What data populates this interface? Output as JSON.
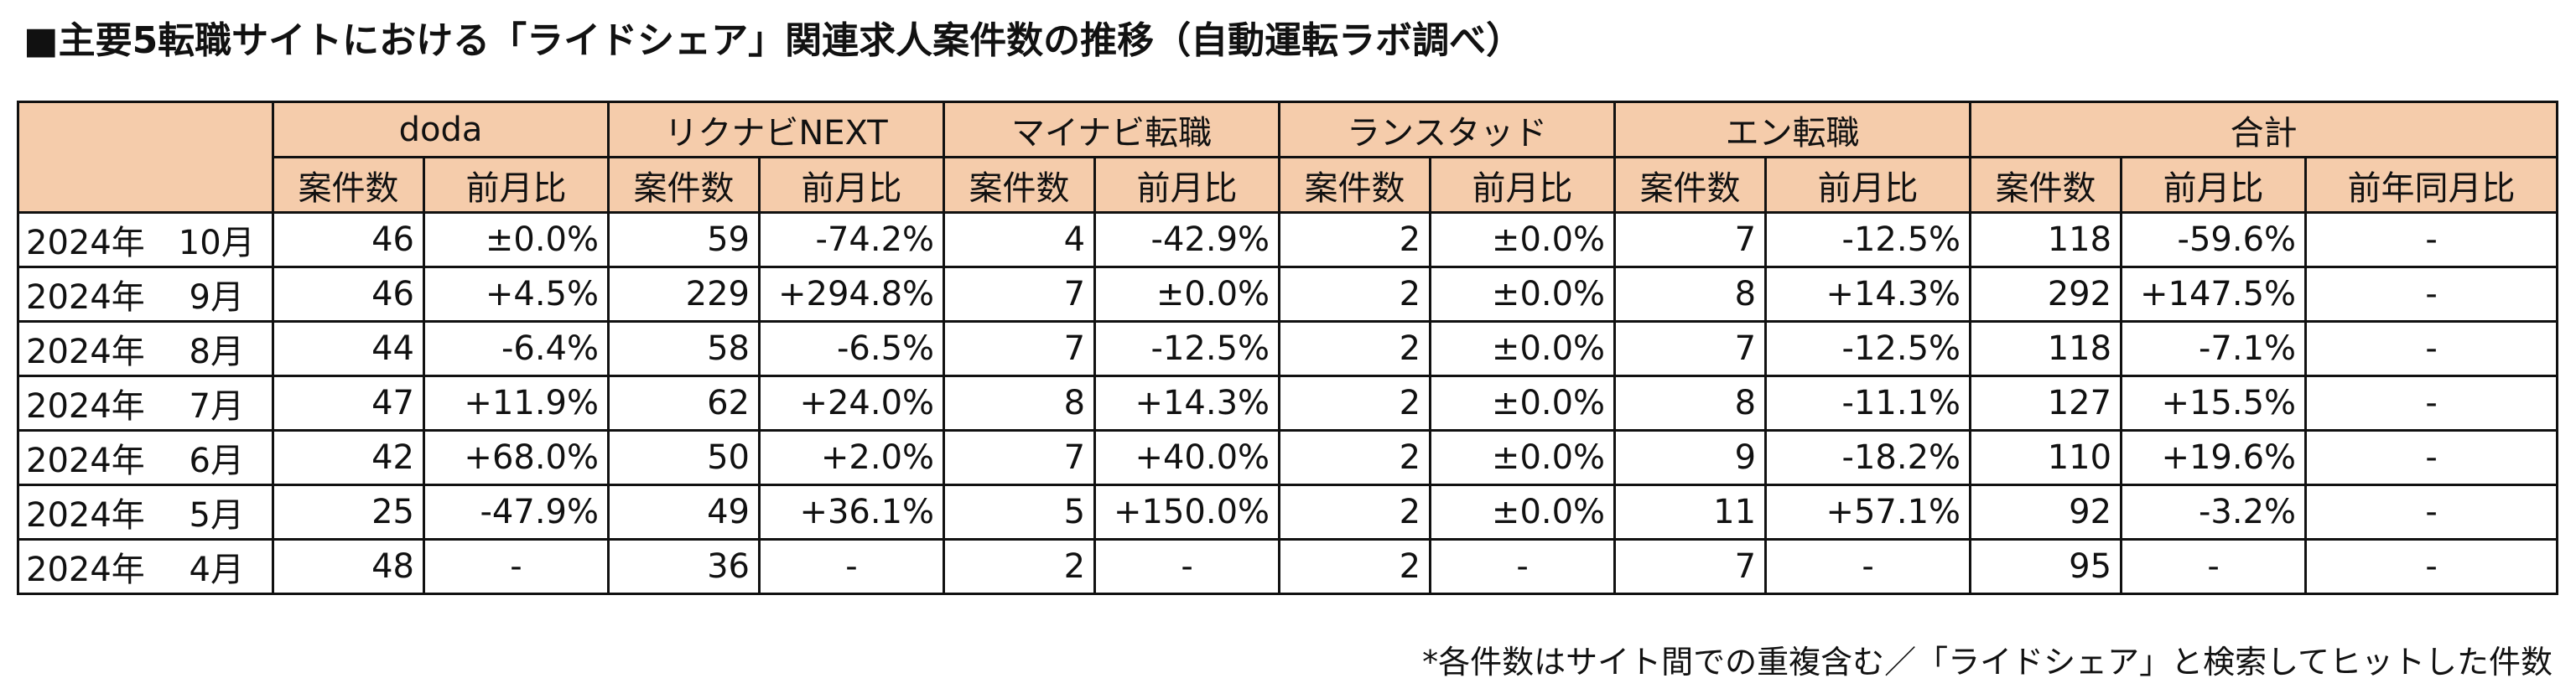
{
  "title": "■主要5転職サイトにおける「ライドシェア」関連求人案件数の推移（自動運転ラボ調べ）",
  "groups": [
    "doda",
    "リクナビNEXT",
    "マイナビ転職",
    "ランスタッド",
    "エン転職",
    "合計"
  ],
  "subheaders": {
    "count": "案件数",
    "mom": "前月比",
    "yoy": "前年同月比"
  },
  "rows": [
    {
      "month": "2024年　10月",
      "cells": [
        "46",
        "±0.0%",
        "59",
        "-74.2%",
        "4",
        "-42.9%",
        "2",
        "±0.0%",
        "7",
        "-12.5%",
        "118",
        "-59.6%",
        "-"
      ]
    },
    {
      "month": "2024年　 9月",
      "cells": [
        "46",
        "+4.5%",
        "229",
        "+294.8%",
        "7",
        "±0.0%",
        "2",
        "±0.0%",
        "8",
        "+14.3%",
        "292",
        "+147.5%",
        "-"
      ]
    },
    {
      "month": "2024年　 8月",
      "cells": [
        "44",
        "-6.4%",
        "58",
        "-6.5%",
        "7",
        "-12.5%",
        "2",
        "±0.0%",
        "7",
        "-12.5%",
        "118",
        "-7.1%",
        "-"
      ]
    },
    {
      "month": "2024年　 7月",
      "cells": [
        "47",
        "+11.9%",
        "62",
        "+24.0%",
        "8",
        "+14.3%",
        "2",
        "±0.0%",
        "8",
        "-11.1%",
        "127",
        "+15.5%",
        "-"
      ]
    },
    {
      "month": "2024年　 6月",
      "cells": [
        "42",
        "+68.0%",
        "50",
        "+2.0%",
        "7",
        "+40.0%",
        "2",
        "±0.0%",
        "9",
        "-18.2%",
        "110",
        "+19.6%",
        "-"
      ]
    },
    {
      "month": "2024年　 5月",
      "cells": [
        "25",
        "-47.9%",
        "49",
        "+36.1%",
        "5",
        "+150.0%",
        "2",
        "±0.0%",
        "11",
        "+57.1%",
        "92",
        "-3.2%",
        "-"
      ]
    },
    {
      "month": "2024年　 4月",
      "cells": [
        "48",
        "-",
        "36",
        "-",
        "2",
        "-",
        "2",
        "-",
        "7",
        "-",
        "95",
        "-",
        "-"
      ]
    }
  ],
  "footnote": "*各件数はサイト間での重複含む／「ライドシェア」と検索してヒットした件数",
  "colors": {
    "header_bg": "#f5ccab",
    "border": "#111111"
  }
}
